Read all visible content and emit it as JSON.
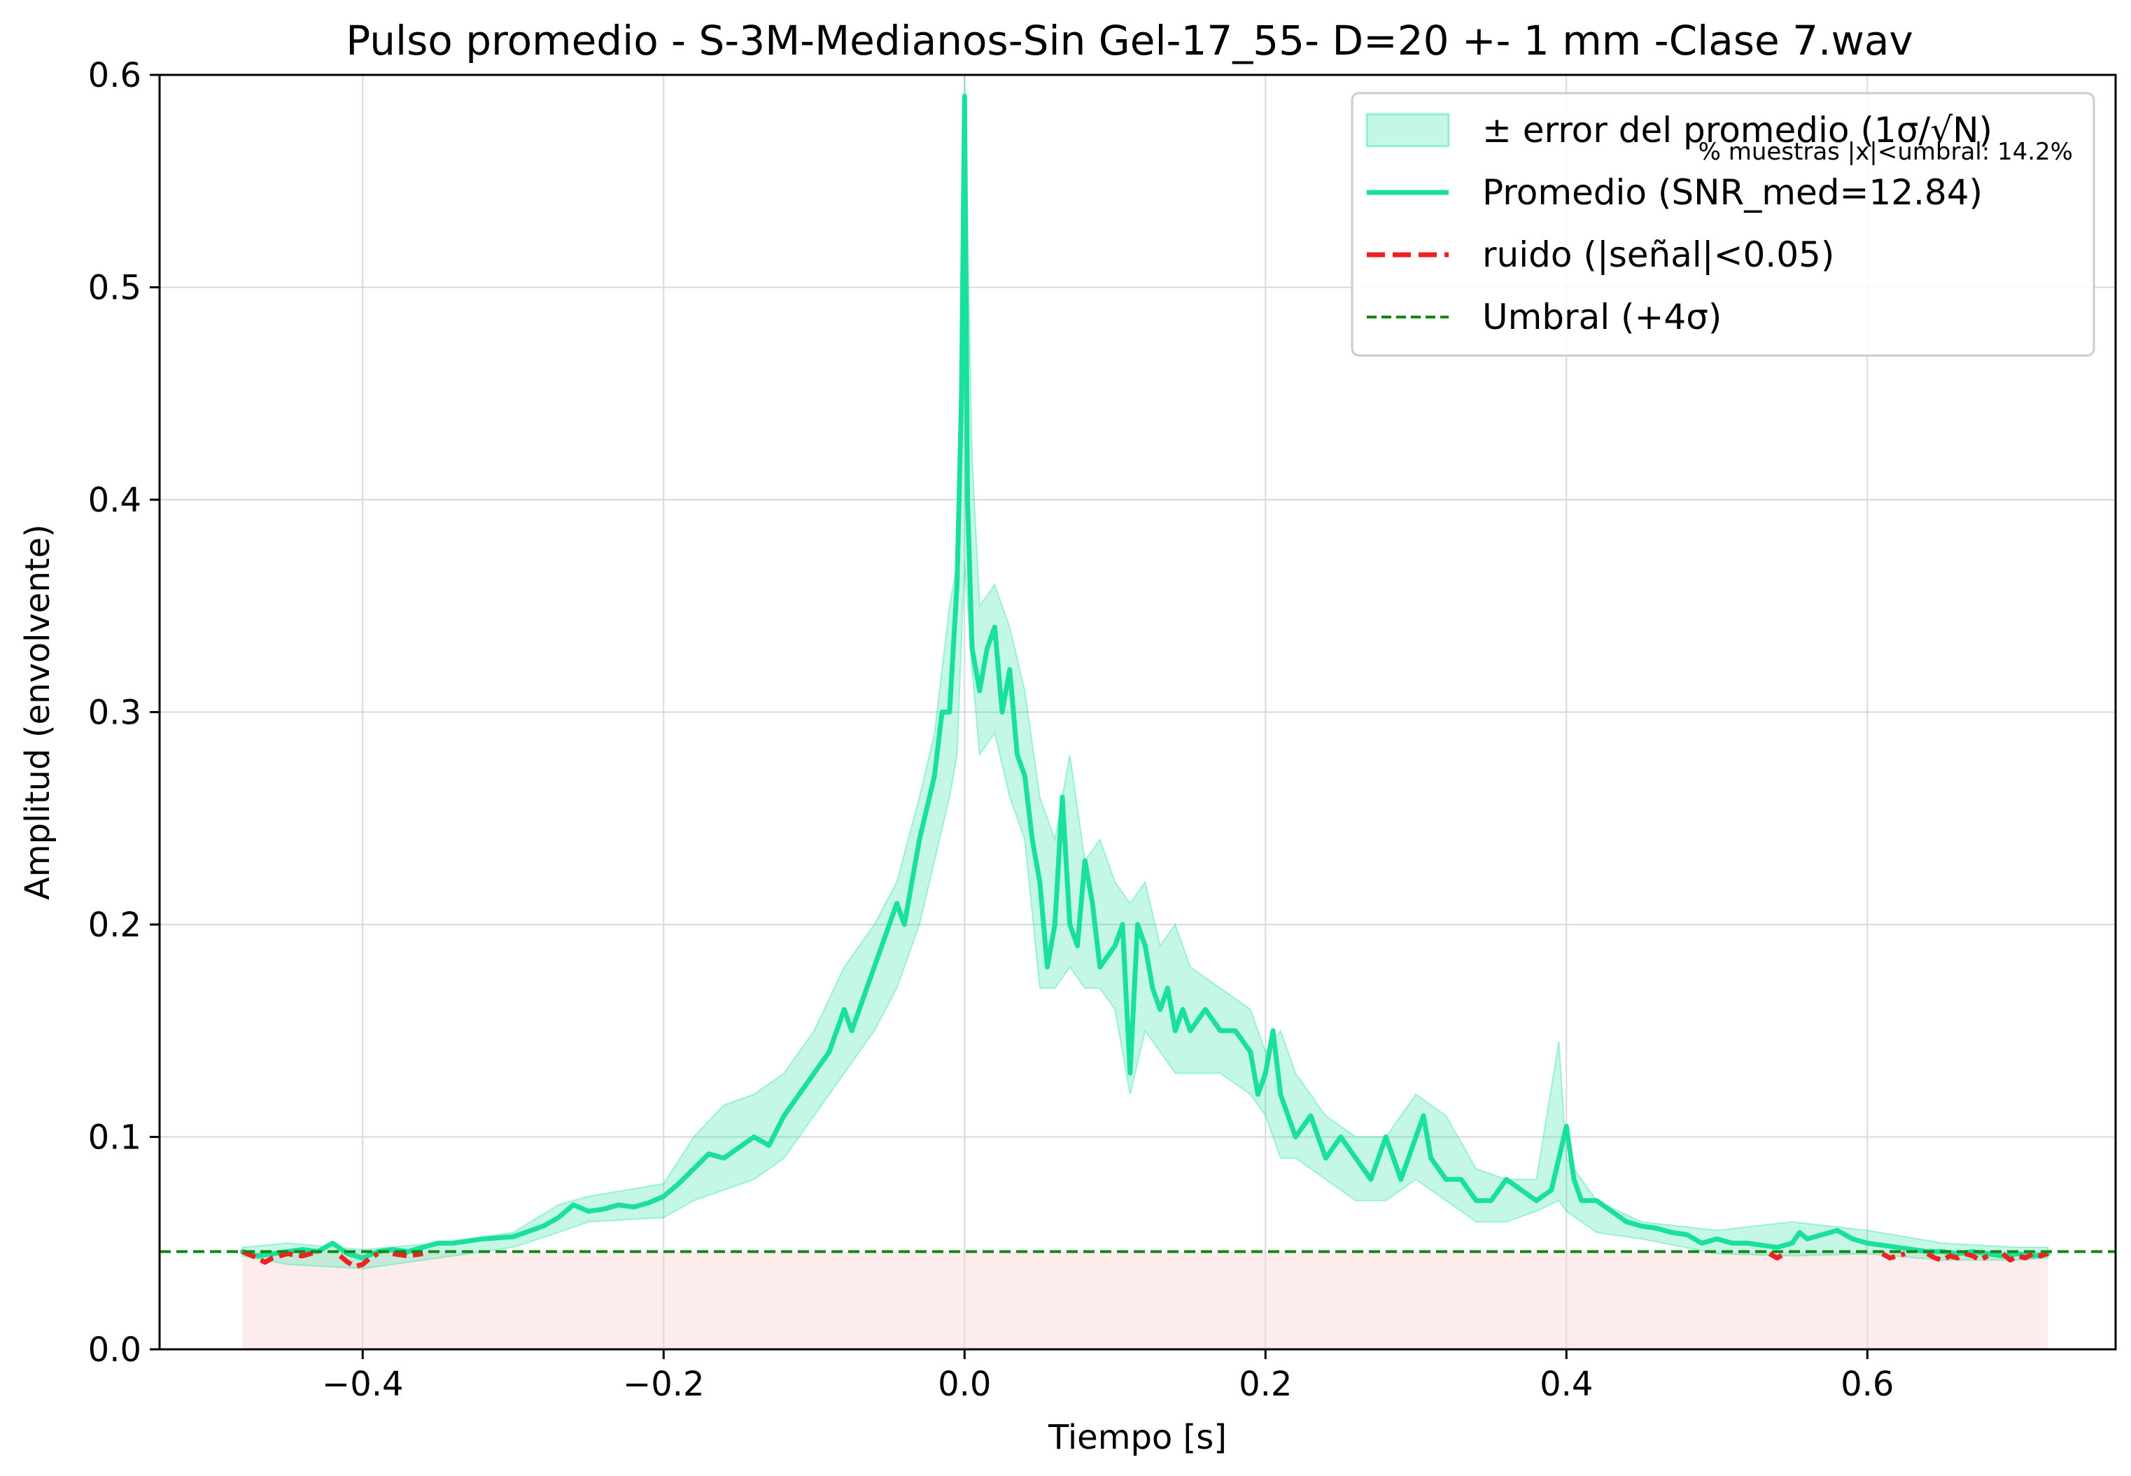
{
  "chart_data": {
    "type": "line",
    "title": "Pulso promedio - S-3M-Medianos-Sin Gel-17_55- D=20 +- 1 mm   -Clase 7.wav",
    "xlabel": "Tiempo [s]",
    "ylabel": "Amplitud (envolvente)",
    "xlim": [
      -0.535,
      0.765
    ],
    "ylim": [
      0,
      0.6
    ],
    "xticks": [
      -0.4,
      -0.2,
      0.0,
      0.2,
      0.4,
      0.6
    ],
    "xtick_labels": [
      "−0.4",
      "−0.2",
      "0.0",
      "0.2",
      "0.4",
      "0.6"
    ],
    "yticks": [
      0.0,
      0.1,
      0.2,
      0.3,
      0.4,
      0.5,
      0.6
    ],
    "ytick_labels": [
      "0.0",
      "0.1",
      "0.2",
      "0.3",
      "0.4",
      "0.5",
      "0.6"
    ],
    "grid": true,
    "legend_position": "top-right",
    "annotation": "% muestras |x|<umbral: 14.2%",
    "colors": {
      "mean": "#19e09a",
      "band": "#19e09a",
      "noise": "#ee2222",
      "threshold": "#118811",
      "noise_region": "#f9d4d4"
    },
    "threshold": 0.046,
    "noise_region": {
      "x": [
        -0.48,
        0.72
      ],
      "y": [
        0,
        0.046
      ]
    },
    "series": [
      {
        "name": "Promedio (SNR_med=12.84)",
        "role": "mean",
        "x": [
          -0.48,
          -0.47,
          -0.46,
          -0.45,
          -0.44,
          -0.43,
          -0.42,
          -0.41,
          -0.4,
          -0.39,
          -0.38,
          -0.37,
          -0.36,
          -0.35,
          -0.34,
          -0.32,
          -0.3,
          -0.28,
          -0.27,
          -0.26,
          -0.25,
          -0.24,
          -0.23,
          -0.22,
          -0.21,
          -0.2,
          -0.19,
          -0.18,
          -0.17,
          -0.16,
          -0.15,
          -0.14,
          -0.13,
          -0.12,
          -0.11,
          -0.1,
          -0.09,
          -0.08,
          -0.075,
          -0.07,
          -0.065,
          -0.06,
          -0.05,
          -0.045,
          -0.04,
          -0.035,
          -0.03,
          -0.02,
          -0.015,
          -0.01,
          -0.005,
          -0.002,
          0.0,
          0.002,
          0.005,
          0.01,
          0.015,
          0.02,
          0.025,
          0.03,
          0.035,
          0.04,
          0.045,
          0.05,
          0.055,
          0.06,
          0.065,
          0.07,
          0.075,
          0.08,
          0.085,
          0.09,
          0.1,
          0.105,
          0.11,
          0.115,
          0.12,
          0.125,
          0.13,
          0.135,
          0.14,
          0.145,
          0.15,
          0.16,
          0.17,
          0.18,
          0.19,
          0.195,
          0.2,
          0.205,
          0.21,
          0.215,
          0.22,
          0.23,
          0.24,
          0.25,
          0.26,
          0.27,
          0.28,
          0.29,
          0.3,
          0.305,
          0.31,
          0.32,
          0.33,
          0.34,
          0.35,
          0.36,
          0.37,
          0.38,
          0.39,
          0.395,
          0.4,
          0.405,
          0.41,
          0.42,
          0.43,
          0.44,
          0.45,
          0.46,
          0.47,
          0.48,
          0.49,
          0.5,
          0.51,
          0.52,
          0.53,
          0.54,
          0.55,
          0.555,
          0.56,
          0.57,
          0.58,
          0.59,
          0.6,
          0.61,
          0.62,
          0.63,
          0.64,
          0.65,
          0.66,
          0.67,
          0.68,
          0.69,
          0.7,
          0.71,
          0.72
        ],
        "y": [
          0.046,
          0.044,
          0.045,
          0.046,
          0.047,
          0.046,
          0.05,
          0.045,
          0.043,
          0.046,
          0.047,
          0.046,
          0.048,
          0.05,
          0.05,
          0.052,
          0.053,
          0.058,
          0.062,
          0.068,
          0.065,
          0.066,
          0.068,
          0.067,
          0.069,
          0.072,
          0.078,
          0.085,
          0.092,
          0.09,
          0.095,
          0.1,
          0.096,
          0.11,
          0.12,
          0.13,
          0.14,
          0.16,
          0.15,
          0.16,
          0.17,
          0.18,
          0.2,
          0.21,
          0.2,
          0.22,
          0.24,
          0.27,
          0.3,
          0.3,
          0.36,
          0.45,
          0.59,
          0.4,
          0.33,
          0.31,
          0.33,
          0.34,
          0.3,
          0.32,
          0.28,
          0.27,
          0.24,
          0.22,
          0.18,
          0.2,
          0.26,
          0.2,
          0.19,
          0.23,
          0.21,
          0.18,
          0.19,
          0.2,
          0.13,
          0.2,
          0.19,
          0.17,
          0.16,
          0.17,
          0.15,
          0.16,
          0.15,
          0.16,
          0.15,
          0.15,
          0.14,
          0.12,
          0.13,
          0.15,
          0.12,
          0.11,
          0.1,
          0.11,
          0.09,
          0.1,
          0.09,
          0.08,
          0.1,
          0.08,
          0.1,
          0.11,
          0.09,
          0.08,
          0.08,
          0.07,
          0.07,
          0.08,
          0.075,
          0.07,
          0.075,
          0.09,
          0.105,
          0.08,
          0.07,
          0.07,
          0.065,
          0.06,
          0.058,
          0.057,
          0.055,
          0.054,
          0.05,
          0.052,
          0.05,
          0.05,
          0.049,
          0.048,
          0.05,
          0.055,
          0.052,
          0.054,
          0.056,
          0.052,
          0.05,
          0.049,
          0.048,
          0.047,
          0.046,
          0.046,
          0.045,
          0.046,
          0.045,
          0.044,
          0.045,
          0.044,
          0.045
        ]
      },
      {
        "name": "ruido (|señal|<0.05)",
        "role": "noise",
        "segments": [
          {
            "x": [
              -0.48,
              -0.47,
              -0.465,
              -0.46,
              -0.45,
              -0.44,
              -0.43
            ],
            "y": [
              0.046,
              0.043,
              0.041,
              0.043,
              0.045,
              0.044,
              0.046
            ]
          },
          {
            "x": [
              -0.415,
              -0.41,
              -0.405,
              -0.4,
              -0.395,
              -0.39
            ],
            "y": [
              0.044,
              0.041,
              0.039,
              0.04,
              0.043,
              0.045
            ]
          },
          {
            "x": [
              -0.38,
              -0.37,
              -0.36
            ],
            "y": [
              0.045,
              0.044,
              0.045
            ]
          },
          {
            "x": [
              0.535,
              0.54,
              0.545
            ],
            "y": [
              0.045,
              0.043,
              0.045
            ]
          },
          {
            "x": [
              0.61,
              0.615,
              0.62,
              0.625
            ],
            "y": [
              0.045,
              0.043,
              0.044,
              0.045
            ]
          },
          {
            "x": [
              0.64,
              0.645,
              0.65,
              0.655,
              0.66,
              0.665,
              0.67,
              0.675,
              0.68
            ],
            "y": [
              0.045,
              0.043,
              0.042,
              0.044,
              0.043,
              0.045,
              0.044,
              0.042,
              0.044
            ]
          },
          {
            "x": [
              0.69,
              0.695,
              0.7,
              0.705,
              0.71,
              0.715,
              0.72
            ],
            "y": [
              0.045,
              0.042,
              0.044,
              0.043,
              0.045,
              0.044,
              0.045
            ]
          }
        ]
      },
      {
        "name": "Umbral (+4σ)",
        "role": "threshold",
        "y": 0.046
      },
      {
        "name": "± error del promedio (1σ/√N)",
        "role": "band",
        "x": [
          -0.48,
          -0.45,
          -0.4,
          -0.35,
          -0.3,
          -0.27,
          -0.25,
          -0.2,
          -0.18,
          -0.16,
          -0.14,
          -0.12,
          -0.1,
          -0.08,
          -0.06,
          -0.045,
          -0.03,
          -0.02,
          -0.01,
          -0.005,
          0.0,
          0.005,
          0.01,
          0.02,
          0.03,
          0.04,
          0.05,
          0.06,
          0.07,
          0.08,
          0.09,
          0.1,
          0.11,
          0.12,
          0.13,
          0.14,
          0.15,
          0.17,
          0.19,
          0.2,
          0.21,
          0.22,
          0.24,
          0.26,
          0.28,
          0.3,
          0.32,
          0.34,
          0.36,
          0.38,
          0.395,
          0.4,
          0.42,
          0.45,
          0.5,
          0.55,
          0.6,
          0.65,
          0.7,
          0.72
        ],
        "upper": [
          0.048,
          0.05,
          0.047,
          0.05,
          0.055,
          0.068,
          0.072,
          0.078,
          0.1,
          0.115,
          0.12,
          0.13,
          0.15,
          0.18,
          0.2,
          0.22,
          0.26,
          0.29,
          0.35,
          0.37,
          0.6,
          0.42,
          0.35,
          0.36,
          0.34,
          0.31,
          0.26,
          0.24,
          0.28,
          0.23,
          0.24,
          0.22,
          0.21,
          0.22,
          0.19,
          0.2,
          0.18,
          0.17,
          0.16,
          0.14,
          0.15,
          0.13,
          0.11,
          0.1,
          0.1,
          0.12,
          0.11,
          0.085,
          0.08,
          0.08,
          0.145,
          0.09,
          0.07,
          0.06,
          0.056,
          0.06,
          0.056,
          0.05,
          0.048,
          0.048
        ],
        "lower": [
          0.044,
          0.04,
          0.038,
          0.043,
          0.048,
          0.055,
          0.06,
          0.062,
          0.07,
          0.075,
          0.08,
          0.09,
          0.11,
          0.13,
          0.15,
          0.17,
          0.2,
          0.23,
          0.26,
          0.28,
          0.37,
          0.32,
          0.28,
          0.29,
          0.26,
          0.24,
          0.17,
          0.17,
          0.18,
          0.17,
          0.17,
          0.16,
          0.12,
          0.15,
          0.14,
          0.13,
          0.13,
          0.13,
          0.12,
          0.11,
          0.09,
          0.09,
          0.08,
          0.07,
          0.07,
          0.08,
          0.07,
          0.06,
          0.06,
          0.065,
          0.07,
          0.065,
          0.055,
          0.052,
          0.045,
          0.044,
          0.045,
          0.042,
          0.042,
          0.043
        ]
      }
    ]
  }
}
